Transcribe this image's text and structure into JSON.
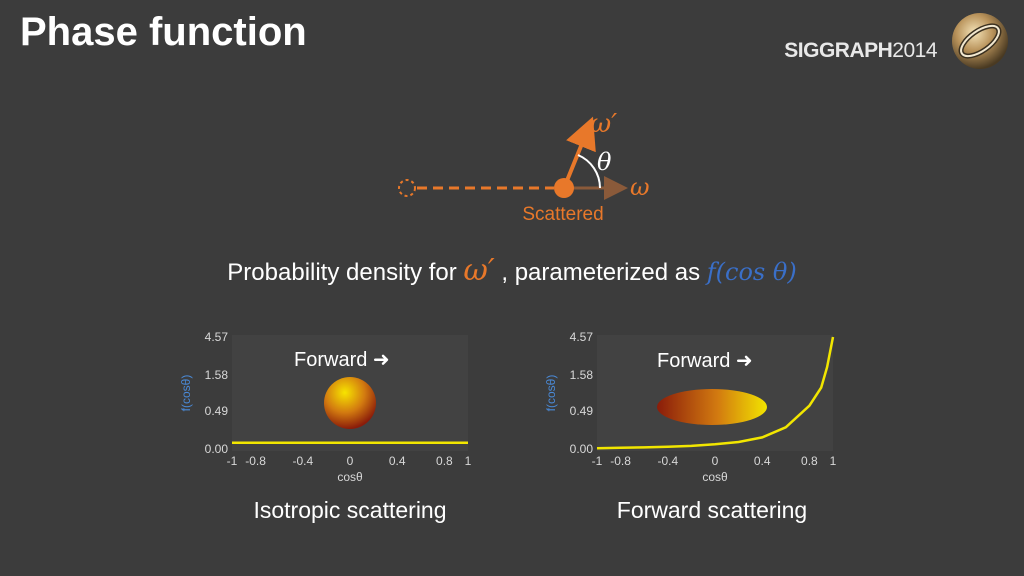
{
  "title": "Phase function",
  "logo": {
    "brand": "SIGGRAPH",
    "year": "2014"
  },
  "diagram": {
    "omega_prime": "ω′",
    "omega": "ω",
    "theta": "θ",
    "scattered_label": "Scattered"
  },
  "caption": {
    "prefix": "Probability density for ",
    "omega_prime": "ω′",
    "middle": " , parameterized as ",
    "fcos": "f(cos θ)"
  },
  "colors": {
    "accent_orange": "#e8782a",
    "curve_yellow": "#f2e600",
    "math_blue": "#3a6fc8"
  },
  "chart_data": [
    {
      "type": "line",
      "title": "",
      "xlabel": "cosθ",
      "ylabel": "f(cosθ)",
      "x_ticks": [
        "-1",
        "-0.8",
        "-0.4",
        "0",
        "0.4",
        "0.8",
        "1"
      ],
      "y_ticks": [
        "0.00",
        "0.49",
        "1.58",
        "4.57"
      ],
      "forward_label": "Forward",
      "caption": "Isotropic scattering",
      "series": [
        {
          "x": [
            -1,
            1
          ],
          "y": [
            0.08,
            0.08
          ]
        }
      ]
    },
    {
      "type": "line",
      "title": "",
      "xlabel": "cosθ",
      "ylabel": "f(cosθ)",
      "x_ticks": [
        "-1",
        "-0.8",
        "-0.4",
        "0",
        "0.4",
        "0.8",
        "1"
      ],
      "y_ticks": [
        "0.00",
        "0.49",
        "1.58",
        "4.57"
      ],
      "forward_label": "Forward",
      "caption": "Forward scattering",
      "series": [
        {
          "x": [
            -1,
            -0.8,
            -0.6,
            -0.4,
            -0.2,
            0,
            0.2,
            0.4,
            0.6,
            0.8,
            0.9,
            0.95,
            1
          ],
          "y": [
            0.01,
            0.015,
            0.02,
            0.03,
            0.04,
            0.06,
            0.09,
            0.15,
            0.28,
            0.65,
            1.2,
            2.2,
            4.57
          ]
        }
      ]
    }
  ]
}
